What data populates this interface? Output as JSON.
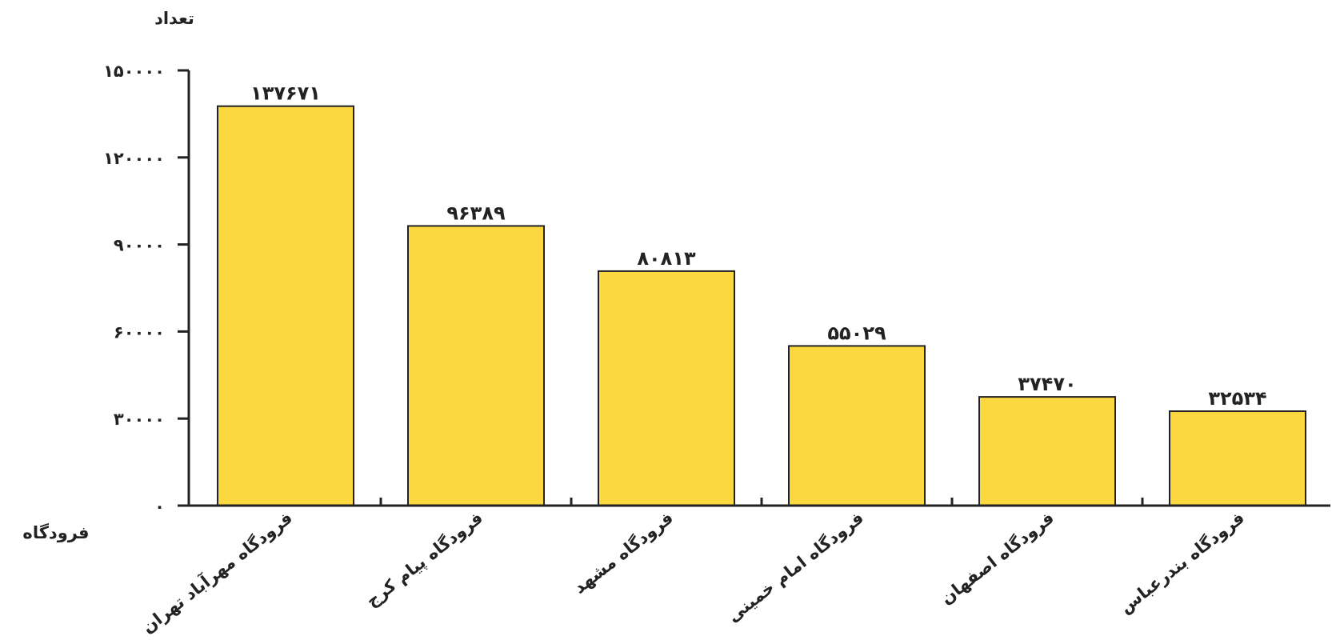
{
  "chart_data": {
    "type": "bar",
    "title": "",
    "ylabel": "تعداد",
    "xlabel": "فرودگاه",
    "ylim": [
      0,
      150000
    ],
    "yticks": [
      0,
      30000,
      60000,
      90000,
      120000,
      150000
    ],
    "ytick_labels": [
      "٠",
      "٣٠٠٠٠",
      "۶٠٠٠٠",
      "٩٠٠٠٠",
      "١٢٠٠٠٠",
      "١۵٠٠٠٠"
    ],
    "categories": [
      "فرودگاه مهرآباد تهران",
      "فرودگاه پیام کرج",
      "فرودگاه مشهد",
      "فرودگاه امام خمینی",
      "فرودگاه اصفهان",
      "فرودگاه بندرعباس"
    ],
    "values": [
      137671,
      96389,
      80813,
      55029,
      37470,
      32534
    ],
    "value_labels": [
      "١٣٧۶٧١",
      "٩۶٣٨٩",
      "٨٠٨١٣",
      "۵۵٠٢٩",
      "٣٧۴٧٠",
      "٣٢۵٣۴"
    ],
    "grid": false,
    "legend": "none",
    "bar_color": "#fbd840",
    "edge_color": "#222222"
  }
}
